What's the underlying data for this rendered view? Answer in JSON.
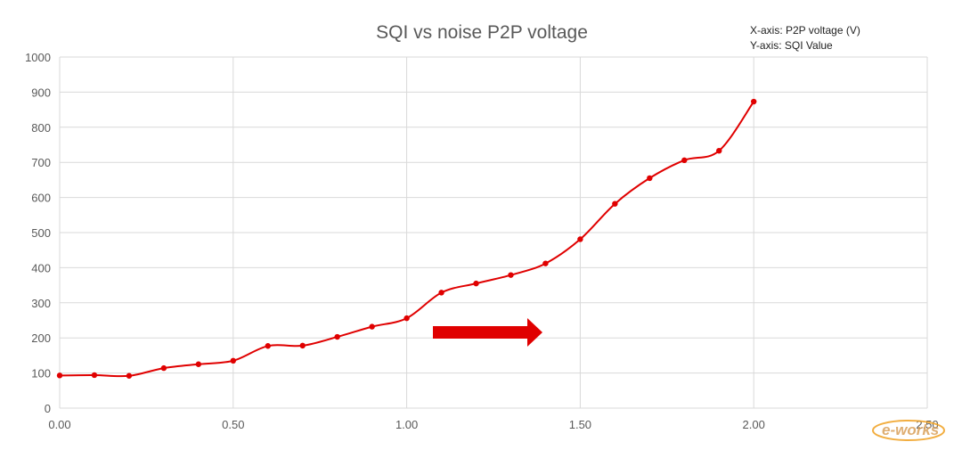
{
  "chart_data": {
    "type": "line",
    "title": "SQI vs noise P2P voltage",
    "notes": [
      "X-axis: P2P voltage (V)",
      "Y-axis: SQI Value"
    ],
    "xlabel": "",
    "ylabel": "",
    "xlim": [
      0,
      2.5
    ],
    "ylim": [
      0,
      1000
    ],
    "x_ticks": [
      "0.00",
      "0.50",
      "1.00",
      "1.50",
      "2.00",
      "2.50"
    ],
    "y_ticks": [
      "0",
      "100",
      "200",
      "300",
      "400",
      "500",
      "600",
      "700",
      "800",
      "900",
      "1000"
    ],
    "grid": true,
    "legend": "none",
    "smooth": true,
    "series": [
      {
        "color": "#e00000",
        "x": [
          0,
          0.1,
          0.2,
          0.3,
          0.4,
          0.5,
          0.6,
          0.7,
          0.8,
          0.9,
          1.0,
          1.1,
          1.2,
          1.3,
          1.4,
          1.5,
          1.6,
          1.7,
          1.8,
          1.9,
          2.0
        ],
        "y": [
          93,
          94,
          92,
          114,
          125,
          135,
          177,
          178,
          203,
          232,
          256,
          329,
          355,
          379,
          412,
          481,
          582,
          655,
          706,
          733,
          873
        ]
      }
    ],
    "annotations": [
      {
        "type": "arrow",
        "direction": "right",
        "color": "#e00000"
      }
    ]
  },
  "watermark": {
    "text": "e-works"
  }
}
